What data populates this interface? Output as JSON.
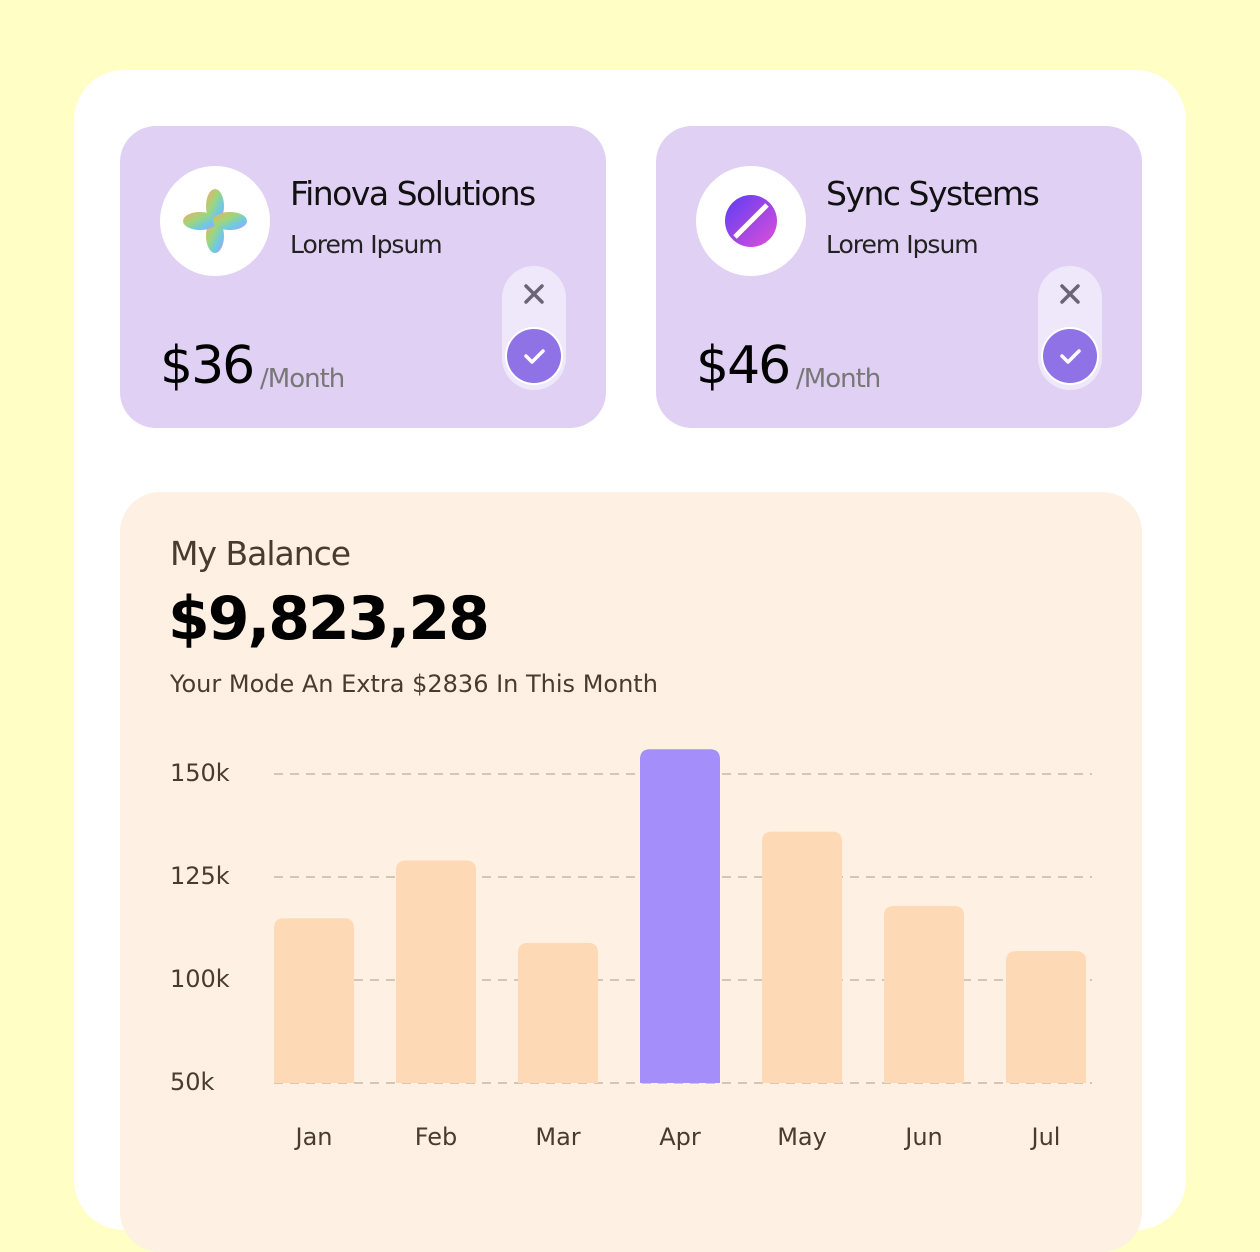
{
  "cards": [
    {
      "name": "Finova Solutions",
      "subtitle": "Lorem Ipsum",
      "price": "$36",
      "period": "/Month"
    },
    {
      "name": "Sync Systems",
      "subtitle": "Lorem Ipsum",
      "price": "$46",
      "period": "/Month"
    }
  ],
  "balance": {
    "label": "My Balance",
    "amount": "$9,823,28",
    "note": "Your Mode An Extra $2836 In This Month"
  },
  "chart_data": {
    "type": "bar",
    "categories": [
      "Jan",
      "Feb",
      "Mar",
      "Apr",
      "May",
      "Jun",
      "Jul"
    ],
    "values": [
      115000,
      129000,
      109000,
      156000,
      136000,
      118000,
      107000
    ],
    "colors": [
      "#fdd9b5",
      "#fdd9b5",
      "#fdd9b5",
      "#a48ffa",
      "#fdd9b5",
      "#fdd9b5",
      "#fdd9b5"
    ],
    "ylim": [
      50000,
      156000
    ],
    "yticks": [
      {
        "value": 150000,
        "label": "150k"
      },
      {
        "value": 125000,
        "label": "125k"
      },
      {
        "value": 100000,
        "label": "100k"
      },
      {
        "value": 50000,
        "label": "50k"
      }
    ],
    "grid": true
  }
}
